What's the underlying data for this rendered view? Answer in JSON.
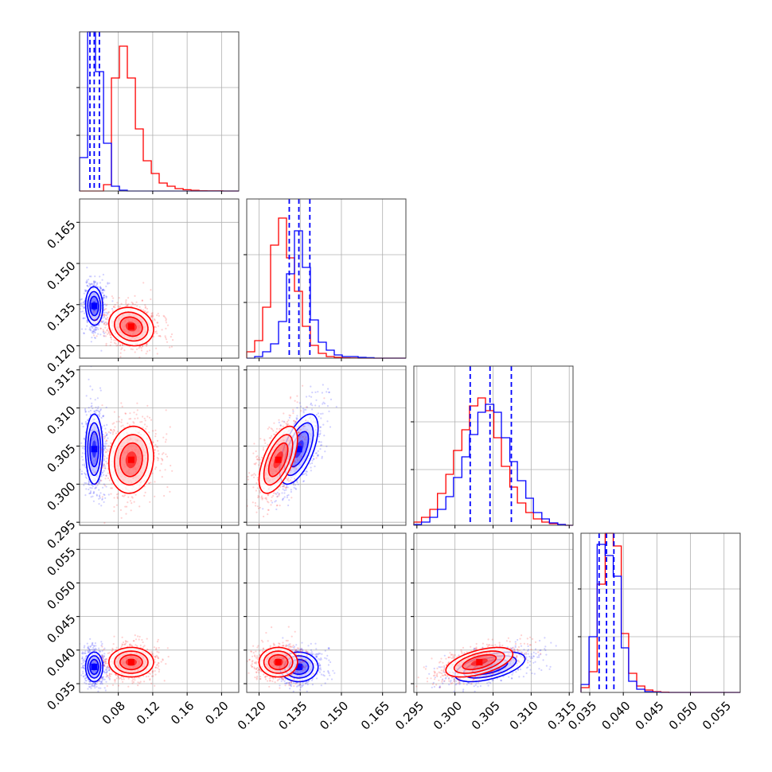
{
  "colors": {
    "red": "#ff0000",
    "blue": "#0000ff"
  },
  "chart_data": {
    "type": "corner",
    "grid": true,
    "series": [
      {
        "color": "#ff0000",
        "linestyle": "solid"
      },
      {
        "color": "#0000ff",
        "linestyle": "solid",
        "quantile_lines": "dashed"
      }
    ],
    "params": [
      {
        "range": [
          0.035,
          0.22
        ],
        "ticks": [
          0.08,
          0.12,
          0.16,
          0.2
        ],
        "tick_labels": [
          "0.08",
          "0.12",
          "0.16",
          "0.20"
        ]
      },
      {
        "range": [
          0.1155,
          0.1735
        ],
        "ticks": [
          0.12,
          0.135,
          0.15,
          0.165
        ],
        "tick_labels": [
          "0.120",
          "0.135",
          "0.150",
          "0.165"
        ]
      },
      {
        "range": [
          0.2946,
          0.3155
        ],
        "ticks": [
          0.295,
          0.3,
          0.305,
          0.31,
          0.315
        ],
        "tick_labels": [
          "0.295",
          "0.300",
          "0.305",
          "0.310",
          "0.315"
        ]
      },
      {
        "range": [
          0.0337,
          0.0574
        ],
        "ticks": [
          0.035,
          0.04,
          0.045,
          0.05,
          0.055
        ],
        "tick_labels": [
          "0.035",
          "0.040",
          "0.045",
          "0.050",
          "0.055"
        ]
      }
    ],
    "means": {
      "red": [
        0.095,
        0.127,
        0.3032,
        0.0382
      ],
      "blue": [
        0.052,
        0.1345,
        0.3046,
        0.0375
      ]
    },
    "sigmas": {
      "red": [
        0.013,
        0.0035,
        0.0022,
        0.0011
      ],
      "blue": [
        0.005,
        0.0035,
        0.0023,
        0.0011
      ]
    },
    "blue_quantiles": [
      [
        0.047,
        0.052,
        0.058
      ],
      [
        0.131,
        0.1345,
        0.1385
      ],
      [
        0.302,
        0.3046,
        0.3074
      ],
      [
        0.0364,
        0.0375,
        0.0386
      ]
    ],
    "histograms": [
      {
        "bin_edges": [
          0.035,
          0.0443,
          0.0535,
          0.0628,
          0.072,
          0.0813,
          0.0905,
          0.0998,
          0.109,
          0.1183,
          0.1275,
          0.1368,
          0.146,
          0.1553,
          0.1645,
          0.1738,
          0.183,
          0.1923,
          0.2015,
          0.2108,
          0.22
        ],
        "red": [
          0,
          0,
          0,
          0.04,
          0.71,
          0.91,
          0.71,
          0.39,
          0.19,
          0.11,
          0.05,
          0.03,
          0.015,
          0.008,
          0.004,
          0.002,
          0.001,
          0.001,
          0,
          0
        ],
        "blue": [
          0.21,
          1.0,
          0.75,
          0.3,
          0.03,
          0.005,
          0,
          0,
          0,
          0,
          0,
          0,
          0,
          0,
          0,
          0,
          0,
          0,
          0,
          0
        ]
      },
      {
        "bin_edges": [
          0.1155,
          0.1184,
          0.1213,
          0.1242,
          0.1271,
          0.13,
          0.1329,
          0.1358,
          0.1387,
          0.1416,
          0.1445,
          0.1474,
          0.1503,
          0.1532,
          0.1561,
          0.159,
          0.1619,
          0.1648,
          0.1677,
          0.1706,
          0.1735
        ],
        "red": [
          0.04,
          0.11,
          0.32,
          0.71,
          0.88,
          0.63,
          0.42,
          0.2,
          0.08,
          0.03,
          0.01,
          0.005,
          0.002,
          0.001,
          0,
          0,
          0,
          0,
          0,
          0
        ],
        "blue": [
          0,
          0.01,
          0.04,
          0.09,
          0.23,
          0.53,
          0.8,
          0.57,
          0.24,
          0.1,
          0.05,
          0.02,
          0.01,
          0.01,
          0.005,
          0.003,
          0,
          0,
          0,
          0
        ]
      },
      {
        "bin_edges": [
          0.2946,
          0.2956,
          0.2967,
          0.2977,
          0.2988,
          0.2998,
          0.3009,
          0.3019,
          0.303,
          0.304,
          0.3051,
          0.3061,
          0.3072,
          0.3082,
          0.3093,
          0.3103,
          0.3114,
          0.3124,
          0.3135,
          0.3145,
          0.3155
        ],
        "red": [
          0.02,
          0.05,
          0.1,
          0.2,
          0.32,
          0.47,
          0.6,
          0.75,
          0.8,
          0.72,
          0.55,
          0.37,
          0.24,
          0.14,
          0.08,
          0.04,
          0.02,
          0.01,
          0.005,
          0
        ],
        "blue": [
          0.005,
          0.02,
          0.05,
          0.1,
          0.18,
          0.3,
          0.43,
          0.57,
          0.71,
          0.76,
          0.71,
          0.55,
          0.4,
          0.28,
          0.17,
          0.08,
          0.04,
          0.015,
          0.005,
          0
        ]
      },
      {
        "bin_edges": [
          0.0337,
          0.0349,
          0.0361,
          0.0373,
          0.0385,
          0.0397,
          0.0408,
          0.042,
          0.0432,
          0.0444,
          0.0456,
          0.0468,
          0.048,
          0.0492,
          0.0503,
          0.0515,
          0.0527,
          0.0539,
          0.0551,
          0.0563,
          0.0574
        ],
        "red": [
          0.03,
          0.13,
          0.68,
          1.0,
          0.92,
          0.37,
          0.12,
          0.04,
          0.015,
          0.005,
          0.002,
          0,
          0,
          0,
          0,
          0,
          0,
          0,
          0,
          0
        ],
        "blue": [
          0.05,
          0.35,
          0.93,
          0.86,
          0.73,
          0.28,
          0.07,
          0.02,
          0.005,
          0.002,
          0,
          0,
          0,
          0,
          0,
          0,
          0,
          0,
          0,
          0
        ]
      }
    ],
    "correlations": {
      "1-0": {
        "red": -0.15,
        "blue": -0.05
      },
      "2-0": {
        "red": 0.1,
        "blue": 0.0
      },
      "2-1": {
        "red": 0.6,
        "blue": 0.6
      },
      "3-0": {
        "red": 0.0,
        "blue": 0.0
      },
      "3-1": {
        "red": 0.0,
        "blue": 0.0
      },
      "3-2": {
        "red": 0.55,
        "blue": 0.55
      }
    }
  }
}
